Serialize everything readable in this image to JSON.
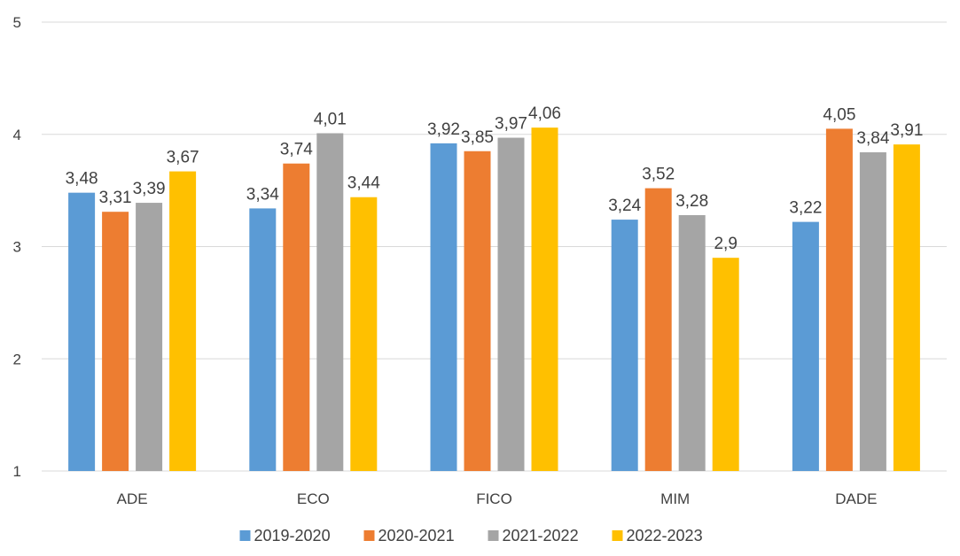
{
  "chart_data": {
    "type": "bar",
    "title": "",
    "xlabel": "",
    "ylabel": "",
    "ylim": [
      1,
      5
    ],
    "yticks": [
      1,
      2,
      3,
      4,
      5
    ],
    "grid": true,
    "legend_position": "bottom",
    "categories": [
      "ADE",
      "ECO",
      "FICO",
      "MIM",
      "DADE"
    ],
    "series": [
      {
        "name": "2019-2020",
        "color": "#5B9BD5",
        "values": [
          3.48,
          3.34,
          3.92,
          3.24,
          3.22
        ],
        "labels": [
          "3,48",
          "3,34",
          "3,92",
          "3,24",
          "3,22"
        ]
      },
      {
        "name": "2020-2021",
        "color": "#ED7D31",
        "values": [
          3.31,
          3.74,
          3.85,
          3.52,
          4.05
        ],
        "labels": [
          "3,31",
          "3,74",
          "3,85",
          "3,52",
          "4,05"
        ]
      },
      {
        "name": "2021-2022",
        "color": "#A5A5A5",
        "values": [
          3.39,
          4.01,
          3.97,
          3.28,
          3.84
        ],
        "labels": [
          "3,39",
          "4,01",
          "3,97",
          "3,28",
          "3,84"
        ]
      },
      {
        "name": "2022-2023",
        "color": "#FFC000",
        "values": [
          3.67,
          3.44,
          4.06,
          2.9,
          3.91
        ],
        "labels": [
          "3,67",
          "3,44",
          "4,06",
          "2,9",
          "3,91"
        ]
      }
    ]
  }
}
